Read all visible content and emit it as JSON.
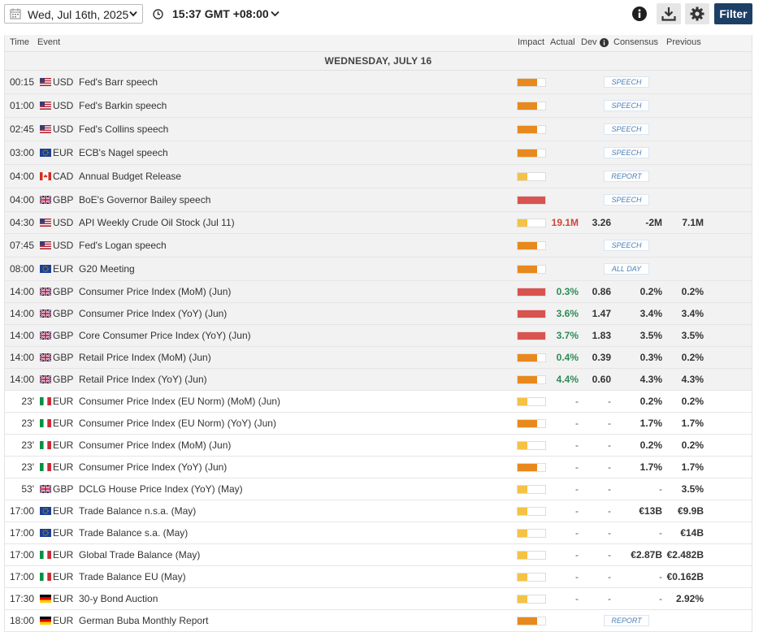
{
  "toolbar": {
    "date": "Wed, Jul 16th, 2025",
    "time": "15:37 GMT +08:00",
    "filter_label": "Filter"
  },
  "columns": {
    "time": "Time",
    "event": "Event",
    "impact": "Impact",
    "actual": "Actual",
    "dev": "Dev",
    "consensus": "Consensus",
    "previous": "Previous"
  },
  "day_header": "WEDNESDAY, JULY 16",
  "impact_colors": {
    "high": "#d9534f",
    "medium": "#e8891d",
    "low": "#f5c244"
  },
  "events": [
    {
      "time": "00:15",
      "flag": "US",
      "currency": "USD",
      "event": "Fed's Barr speech",
      "impact": "medium",
      "tag": "SPEECH",
      "past": true
    },
    {
      "time": "01:00",
      "flag": "US",
      "currency": "USD",
      "event": "Fed's Barkin speech",
      "impact": "medium",
      "tag": "SPEECH",
      "past": true
    },
    {
      "time": "02:45",
      "flag": "US",
      "currency": "USD",
      "event": "Fed's Collins speech",
      "impact": "medium",
      "tag": "SPEECH",
      "past": true
    },
    {
      "time": "03:00",
      "flag": "EU",
      "currency": "EUR",
      "event": "ECB's Nagel speech",
      "impact": "medium",
      "tag": "SPEECH",
      "past": true
    },
    {
      "time": "04:00",
      "flag": "CA",
      "currency": "CAD",
      "event": "Annual Budget Release",
      "impact": "low",
      "tag": "REPORT",
      "past": true
    },
    {
      "time": "04:00",
      "flag": "GB",
      "currency": "GBP",
      "event": "BoE's Governor Bailey speech",
      "impact": "high",
      "tag": "SPEECH",
      "past": true
    },
    {
      "time": "04:30",
      "flag": "US",
      "currency": "USD",
      "event": "API Weekly Crude Oil Stock (Jul 11)",
      "impact": "low",
      "actual": "19.1M",
      "actual_dir": "down",
      "dev": "3.26",
      "consensus": "-2M",
      "previous": "7.1M",
      "past": true
    },
    {
      "time": "07:45",
      "flag": "US",
      "currency": "USD",
      "event": "Fed's Logan speech",
      "impact": "medium",
      "tag": "SPEECH",
      "past": true
    },
    {
      "time": "08:00",
      "flag": "EU",
      "currency": "EUR",
      "event": "G20 Meeting",
      "impact": "medium",
      "tag": "ALL DAY",
      "past": true
    },
    {
      "time": "14:00",
      "flag": "GB",
      "currency": "GBP",
      "event": "Consumer Price Index (MoM) (Jun)",
      "impact": "high",
      "actual": "0.3%",
      "actual_dir": "up",
      "dev": "0.86",
      "consensus": "0.2%",
      "previous": "0.2%",
      "past": true
    },
    {
      "time": "14:00",
      "flag": "GB",
      "currency": "GBP",
      "event": "Consumer Price Index (YoY) (Jun)",
      "impact": "high",
      "actual": "3.6%",
      "actual_dir": "up",
      "dev": "1.47",
      "consensus": "3.4%",
      "previous": "3.4%",
      "past": true
    },
    {
      "time": "14:00",
      "flag": "GB",
      "currency": "GBP",
      "event": "Core Consumer Price Index (YoY) (Jun)",
      "impact": "high",
      "actual": "3.7%",
      "actual_dir": "up",
      "dev": "1.83",
      "consensus": "3.5%",
      "previous": "3.5%",
      "past": true
    },
    {
      "time": "14:00",
      "flag": "GB",
      "currency": "GBP",
      "event": "Retail Price Index (MoM) (Jun)",
      "impact": "medium",
      "actual": "0.4%",
      "actual_dir": "up",
      "dev": "0.39",
      "consensus": "0.3%",
      "previous": "0.2%",
      "past": true
    },
    {
      "time": "14:00",
      "flag": "GB",
      "currency": "GBP",
      "event": "Retail Price Index (YoY) (Jun)",
      "impact": "medium",
      "actual": "4.4%",
      "actual_dir": "up",
      "dev": "0.60",
      "consensus": "4.3%",
      "previous": "4.3%",
      "past": true
    },
    {
      "time": "23'",
      "flag": "IT",
      "currency": "EUR",
      "event": "Consumer Price Index (EU Norm) (MoM) (Jun)",
      "impact": "low",
      "actual": "-",
      "dev": "-",
      "consensus": "0.2%",
      "previous": "0.2%",
      "past": false
    },
    {
      "time": "23'",
      "flag": "IT",
      "currency": "EUR",
      "event": "Consumer Price Index (EU Norm) (YoY) (Jun)",
      "impact": "medium",
      "actual": "-",
      "dev": "-",
      "consensus": "1.7%",
      "previous": "1.7%",
      "past": false
    },
    {
      "time": "23'",
      "flag": "IT",
      "currency": "EUR",
      "event": "Consumer Price Index (MoM) (Jun)",
      "impact": "low",
      "actual": "-",
      "dev": "-",
      "consensus": "0.2%",
      "previous": "0.2%",
      "past": false
    },
    {
      "time": "23'",
      "flag": "IT",
      "currency": "EUR",
      "event": "Consumer Price Index (YoY) (Jun)",
      "impact": "medium",
      "actual": "-",
      "dev": "-",
      "consensus": "1.7%",
      "previous": "1.7%",
      "past": false
    },
    {
      "time": "53'",
      "flag": "GB",
      "currency": "GBP",
      "event": "DCLG House Price Index (YoY) (May)",
      "impact": "low",
      "actual": "-",
      "dev": "-",
      "consensus": "-",
      "previous": "3.5%",
      "past": false
    },
    {
      "time": "17:00",
      "flag": "EU",
      "currency": "EUR",
      "event": "Trade Balance n.s.a. (May)",
      "impact": "low",
      "actual": "-",
      "dev": "-",
      "consensus": "€13B",
      "previous": "€9.9B",
      "past": false
    },
    {
      "time": "17:00",
      "flag": "EU",
      "currency": "EUR",
      "event": "Trade Balance s.a. (May)",
      "impact": "low",
      "actual": "-",
      "dev": "-",
      "consensus": "-",
      "previous": "€14B",
      "past": false
    },
    {
      "time": "17:00",
      "flag": "IT",
      "currency": "EUR",
      "event": "Global Trade Balance (May)",
      "impact": "low",
      "actual": "-",
      "dev": "-",
      "consensus": "€2.87B",
      "previous": "€2.482B",
      "past": false
    },
    {
      "time": "17:00",
      "flag": "IT",
      "currency": "EUR",
      "event": "Trade Balance EU (May)",
      "impact": "low",
      "actual": "-",
      "dev": "-",
      "consensus": "-",
      "previous": "€0.162B",
      "past": false
    },
    {
      "time": "17:30",
      "flag": "DE",
      "currency": "EUR",
      "event": "30-y Bond Auction",
      "impact": "low",
      "actual": "-",
      "dev": "-",
      "consensus": "-",
      "previous": "2.92%",
      "past": false
    },
    {
      "time": "18:00",
      "flag": "DE",
      "currency": "EUR",
      "event": "German Buba Monthly Report",
      "impact": "medium",
      "tag": "REPORT",
      "past": false
    }
  ]
}
